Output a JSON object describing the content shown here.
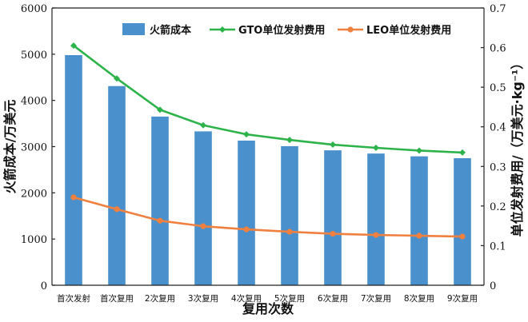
{
  "chart_data": {
    "type": "bar",
    "categories": [
      "首次发射",
      "首次复用",
      "2次复用",
      "3次复用",
      "4次复用",
      "5次复用",
      "6次复用",
      "7次复用",
      "8次复用",
      "9次复用"
    ],
    "xlabel": "复用次数",
    "ylabel": "火箭成本/万美元",
    "y2label": "单位发射费用/（万美元·kg⁻¹）",
    "ylim": [
      0,
      6000
    ],
    "y2lim": [
      0,
      0.7
    ],
    "yticks": [
      "0",
      "1000",
      "2000",
      "3000",
      "4000",
      "5000",
      "6000"
    ],
    "y2ticks": [
      "0",
      "0.1",
      "0.2",
      "0.3",
      "0.4",
      "0.5",
      "0.6",
      "0.7"
    ],
    "legend_position": "top-center",
    "grid": false,
    "series": [
      {
        "name": "火箭成本",
        "type": "bar",
        "axis": "left",
        "color": "#4a90cc",
        "values": [
          4980,
          4310,
          3650,
          3330,
          3130,
          3010,
          2920,
          2850,
          2790,
          2750
        ]
      },
      {
        "name": "GTO单位发射费用",
        "type": "line",
        "axis": "right",
        "color": "#2db34a",
        "values": [
          0.605,
          0.522,
          0.443,
          0.404,
          0.381,
          0.367,
          0.355,
          0.347,
          0.34,
          0.335
        ]
      },
      {
        "name": "LEO单位发射费用",
        "type": "line",
        "axis": "right",
        "color": "#f08040",
        "values": [
          0.222,
          0.192,
          0.163,
          0.149,
          0.141,
          0.135,
          0.13,
          0.127,
          0.125,
          0.123
        ]
      }
    ]
  }
}
